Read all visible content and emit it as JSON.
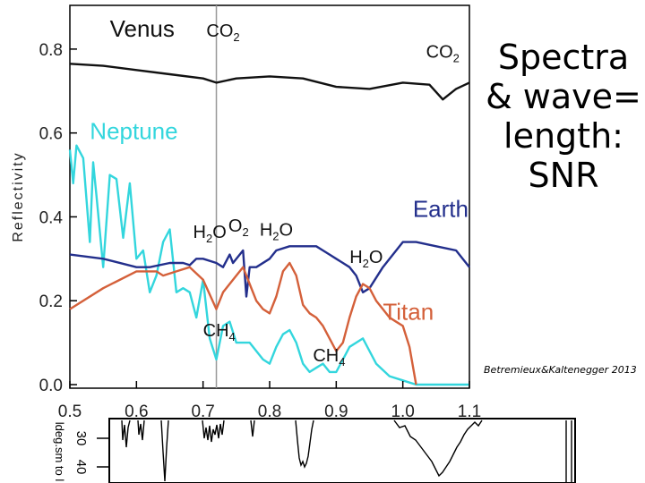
{
  "slide": {
    "title_lines": [
      "Spectra",
      "& wave=",
      "length:",
      "SNR"
    ],
    "citation": "Betremieux&Kaltenegger 2013"
  },
  "chart_data": {
    "type": "line",
    "xlim": [
      0.5,
      1.1
    ],
    "ylim": [
      0.0,
      0.9
    ],
    "ylabel": "Reflectivity",
    "xticks": [
      "0.5",
      "0.6",
      "0.7",
      "0.8",
      "0.9",
      "1.0",
      "1.1"
    ],
    "yticks": [
      "0.0",
      "0.2",
      "0.4",
      "0.6",
      "0.8"
    ],
    "marker_line_x": 0.72,
    "series": [
      {
        "name": "Venus",
        "color": "#111111",
        "label_x": 0.56,
        "label_y": 0.83,
        "x": [
          0.5,
          0.55,
          0.6,
          0.65,
          0.7,
          0.72,
          0.75,
          0.8,
          0.85,
          0.9,
          0.95,
          1.0,
          1.04,
          1.06,
          1.08,
          1.1
        ],
        "y": [
          0.765,
          0.76,
          0.75,
          0.74,
          0.73,
          0.72,
          0.73,
          0.735,
          0.73,
          0.71,
          0.705,
          0.72,
          0.715,
          0.68,
          0.705,
          0.72
        ]
      },
      {
        "name": "Neptune",
        "color": "#33d6dd",
        "label_x": 0.53,
        "label_y": 0.585,
        "x": [
          0.5,
          0.505,
          0.51,
          0.52,
          0.53,
          0.535,
          0.54,
          0.55,
          0.56,
          0.57,
          0.58,
          0.59,
          0.6,
          0.61,
          0.62,
          0.63,
          0.64,
          0.65,
          0.66,
          0.67,
          0.68,
          0.69,
          0.7,
          0.71,
          0.72,
          0.73,
          0.74,
          0.75,
          0.77,
          0.79,
          0.8,
          0.81,
          0.82,
          0.83,
          0.84,
          0.85,
          0.86,
          0.87,
          0.88,
          0.89,
          0.9,
          0.91,
          0.92,
          0.93,
          0.94,
          0.95,
          0.96,
          0.98,
          1.0,
          1.01,
          1.02,
          1.1
        ],
        "y": [
          0.56,
          0.48,
          0.57,
          0.54,
          0.34,
          0.53,
          0.45,
          0.28,
          0.5,
          0.49,
          0.35,
          0.48,
          0.3,
          0.32,
          0.22,
          0.26,
          0.34,
          0.37,
          0.22,
          0.23,
          0.22,
          0.16,
          0.25,
          0.11,
          0.06,
          0.14,
          0.15,
          0.1,
          0.1,
          0.06,
          0.05,
          0.09,
          0.12,
          0.13,
          0.1,
          0.05,
          0.03,
          0.04,
          0.05,
          0.03,
          0.03,
          0.06,
          0.09,
          0.1,
          0.11,
          0.08,
          0.05,
          0.02,
          0.01,
          0.005,
          0.0,
          0.0
        ]
      },
      {
        "name": "Earth",
        "color": "#232f8c",
        "label_x": 1.015,
        "label_y": 0.4,
        "x": [
          0.5,
          0.55,
          0.6,
          0.62,
          0.65,
          0.67,
          0.68,
          0.69,
          0.7,
          0.72,
          0.73,
          0.74,
          0.745,
          0.76,
          0.765,
          0.77,
          0.78,
          0.8,
          0.81,
          0.83,
          0.87,
          0.88,
          0.89,
          0.9,
          0.91,
          0.92,
          0.93,
          0.94,
          0.95,
          0.97,
          1.0,
          1.02,
          1.05,
          1.08,
          1.1
        ],
        "y": [
          0.31,
          0.3,
          0.28,
          0.28,
          0.29,
          0.29,
          0.285,
          0.3,
          0.3,
          0.29,
          0.28,
          0.31,
          0.29,
          0.32,
          0.21,
          0.28,
          0.28,
          0.3,
          0.32,
          0.33,
          0.33,
          0.32,
          0.31,
          0.3,
          0.29,
          0.28,
          0.26,
          0.22,
          0.23,
          0.28,
          0.34,
          0.34,
          0.33,
          0.32,
          0.28
        ]
      },
      {
        "name": "Titan",
        "color": "#d4603a",
        "label_x": 0.97,
        "label_y": 0.155,
        "x": [
          0.5,
          0.55,
          0.6,
          0.63,
          0.64,
          0.66,
          0.68,
          0.7,
          0.72,
          0.73,
          0.75,
          0.76,
          0.77,
          0.78,
          0.79,
          0.8,
          0.81,
          0.82,
          0.83,
          0.84,
          0.85,
          0.86,
          0.87,
          0.88,
          0.89,
          0.9,
          0.91,
          0.92,
          0.93,
          0.94,
          0.95,
          0.96,
          0.97,
          0.98,
          0.99,
          1.0,
          1.01,
          1.02
        ],
        "y": [
          0.18,
          0.23,
          0.27,
          0.27,
          0.26,
          0.27,
          0.28,
          0.25,
          0.18,
          0.22,
          0.26,
          0.28,
          0.24,
          0.2,
          0.18,
          0.17,
          0.21,
          0.27,
          0.29,
          0.26,
          0.19,
          0.17,
          0.16,
          0.14,
          0.11,
          0.08,
          0.1,
          0.16,
          0.21,
          0.24,
          0.23,
          0.2,
          0.18,
          0.16,
          0.15,
          0.14,
          0.09,
          0.0
        ]
      }
    ],
    "annotations": [
      {
        "text": "CO",
        "sub": "2",
        "x": 0.705,
        "y": 0.83
      },
      {
        "text": "CO",
        "sub": "2",
        "x": 1.035,
        "y": 0.78
      },
      {
        "text": "H",
        "sub": "2",
        "tail": "O",
        "x": 0.685,
        "y": 0.35
      },
      {
        "text": "O",
        "sub": "2",
        "x": 0.738,
        "y": 0.365
      },
      {
        "text": "H",
        "sub": "2",
        "tail": "O",
        "x": 0.785,
        "y": 0.355
      },
      {
        "text": "H",
        "sub": "2",
        "tail": "O",
        "x": 0.92,
        "y": 0.29
      },
      {
        "text": "CH",
        "sub": "4",
        "x": 0.7,
        "y": 0.115
      },
      {
        "text": "CH",
        "sub": "4",
        "x": 0.865,
        "y": 0.055
      }
    ],
    "lower_panel": {
      "ylabel": "ldeg.sm to l",
      "yticks": [
        "30",
        "40"
      ]
    }
  }
}
